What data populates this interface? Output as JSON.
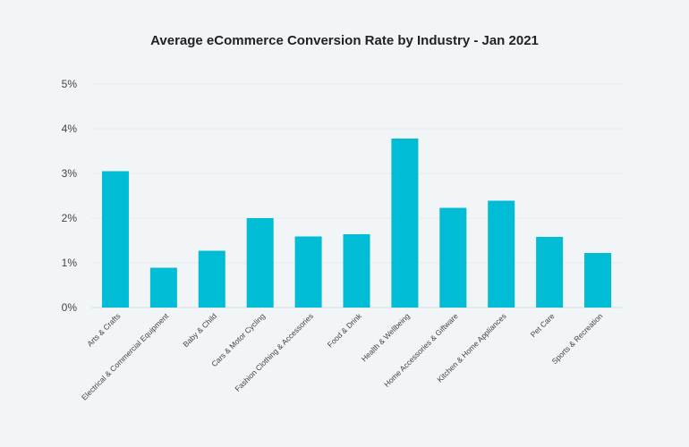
{
  "chart_data": {
    "type": "bar",
    "title": "Average eCommerce Conversion Rate by Industry - Jan 2021",
    "xlabel": "",
    "ylabel": "",
    "ylim": [
      0,
      5
    ],
    "yticks": [
      "0%",
      "1%",
      "2%",
      "3%",
      "4%",
      "5%"
    ],
    "grid": true,
    "legend": "none",
    "bar_color": "#00bcd4",
    "categories": [
      "Arts & Crafts",
      "Electrical & Commercial Equipment",
      "Baby & Child",
      "Cars & Motor Cycling",
      "Fashion Clothing & Accessories",
      "Food & Drink",
      "Health & Wellbeing",
      "Home Accessories & Giftware",
      "Kitchen & Home Appliances",
      "Pet Care",
      "Sports & Recreation"
    ],
    "values": [
      3.05,
      0.89,
      1.27,
      2.0,
      1.59,
      1.64,
      3.78,
      2.23,
      2.39,
      1.58,
      1.22
    ]
  }
}
